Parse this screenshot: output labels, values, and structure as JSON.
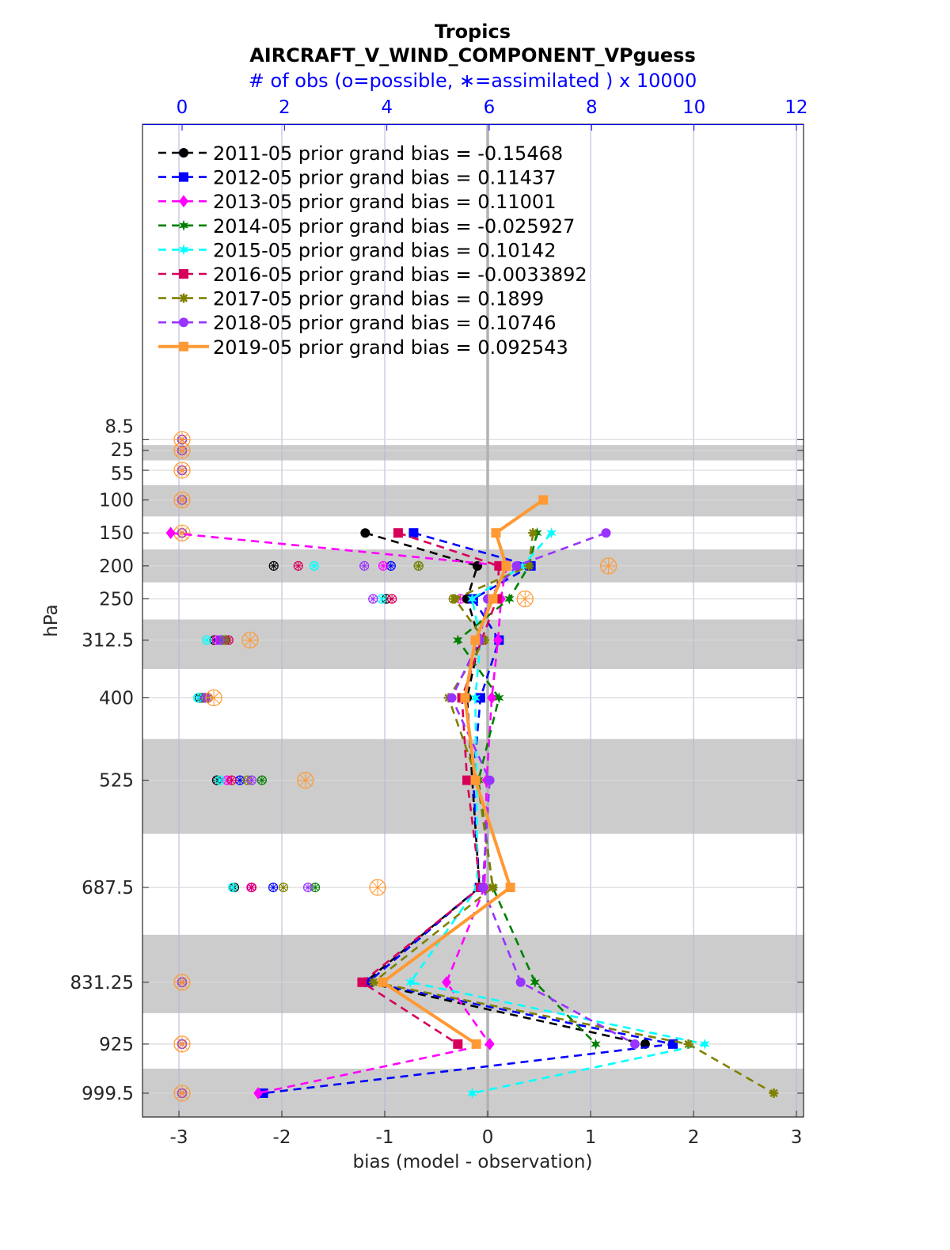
{
  "chart_data": {
    "type": "line",
    "title": "Tropics",
    "subtitle": "AIRCRAFT_V_WIND_COMPONENT_VPguess",
    "top_axis_label": "# of obs (o=possible, ∗=assimilated ) x 10000",
    "xlabel": "bias (model - observation)",
    "ylabel": "hPa",
    "xlim": [
      -3.354,
      3.069
    ],
    "top_xlim": [
      -0.773,
      12.14
    ],
    "ylim": [
      -469.6,
      1035.6
    ],
    "y_reversed": true,
    "x_ticks": [
      "-3",
      "-2",
      "-1",
      "0",
      "1",
      "2",
      "3"
    ],
    "top_ticks": [
      "0",
      "2",
      "4",
      "6",
      "8",
      "10",
      "12"
    ],
    "levels": [
      8.5,
      25,
      55,
      100,
      150,
      200,
      250,
      312.5,
      400,
      525,
      687.5,
      831.25,
      925,
      999.5
    ],
    "level_labels": [
      "8.5",
      "25",
      "55",
      "100",
      "150",
      "200",
      "250",
      "312.5",
      "400",
      "525",
      "687.5",
      "831.25",
      "925",
      "999.5"
    ],
    "grid": true,
    "legend_placement": "top-left",
    "zero_line_color": "#b3b3b3",
    "band_color": "#cccccc",
    "series": [
      {
        "name": "2011-05 prior grand bias = -0.15468",
        "color": "#000000",
        "marker": "circle",
        "style": "dashed",
        "bias": [
          null,
          null,
          null,
          null,
          -1.19,
          -0.1,
          -0.2,
          -0.08,
          -0.2,
          -0.15,
          -0.08,
          -1.19,
          1.53,
          null
        ],
        "obs": [
          0,
          0,
          0,
          0,
          0,
          1.79,
          3.99,
          0.63,
          0.34,
          0.68,
          1.02,
          0,
          0,
          0
        ]
      },
      {
        "name": "2012-05 prior grand bias = 0.11437",
        "color": "#0000ff",
        "marker": "square",
        "style": "dashed",
        "bias": [
          null,
          null,
          null,
          null,
          -0.72,
          0.42,
          -0.14,
          0.11,
          -0.07,
          -0.14,
          -0.08,
          -1.16,
          1.8,
          -2.18
        ],
        "obs": [
          0,
          0,
          0,
          0,
          0,
          4.08,
          5.67,
          0.76,
          0.43,
          1.13,
          1.78,
          0,
          0,
          0
        ]
      },
      {
        "name": "2013-05 prior grand bias = 0.11001",
        "color": "#ff00ff",
        "marker": "diamond",
        "style": "dashed",
        "bias": [
          null,
          null,
          null,
          null,
          -3.08,
          0.18,
          0.13,
          0.1,
          0.04,
          -0.01,
          -0.03,
          -0.4,
          0.02,
          -2.23
        ],
        "obs": [
          0,
          0,
          0,
          0,
          0,
          3.93,
          5.44,
          0.68,
          0.43,
          0.88,
          1.35,
          0,
          0,
          0
        ]
      },
      {
        "name": "2014-05 prior grand bias = -0.025927",
        "color": "#007f00",
        "marker": "star",
        "style": "dashed",
        "bias": [
          null,
          null,
          null,
          null,
          0.48,
          0.4,
          0.21,
          -0.29,
          0.11,
          -0.09,
          0.05,
          0.46,
          1.05,
          null
        ],
        "obs": [
          0,
          0,
          0,
          0,
          0,
          4.62,
          5.58,
          0.85,
          0.4,
          1.56,
          2.6,
          0,
          0,
          0
        ]
      },
      {
        "name": "2015-05 prior grand bias = 0.10142",
        "color": "#00ffff",
        "marker": "star",
        "style": "dashed",
        "bias": [
          null,
          null,
          null,
          null,
          0.62,
          0.34,
          -0.15,
          -0.07,
          -0.12,
          -0.11,
          -0.1,
          -0.75,
          2.11,
          -0.15
        ],
        "obs": [
          0,
          0,
          0,
          0,
          0,
          2.58,
          3.9,
          0.48,
          0.31,
          0.74,
          0.99,
          0,
          0,
          0
        ]
      },
      {
        "name": "2016-05 prior grand bias = -0.0033892",
        "color": "#d6005a",
        "marker": "square",
        "style": "dashed",
        "bias": [
          null,
          null,
          null,
          null,
          -0.87,
          0.11,
          0.09,
          -0.06,
          -0.25,
          -0.2,
          -0.07,
          -1.22,
          -0.29,
          null
        ],
        "obs": [
          0,
          0,
          0,
          0,
          0,
          2.27,
          4.1,
          0.91,
          0.51,
          0.97,
          1.36,
          0,
          0,
          0
        ]
      },
      {
        "name": "2017-05 prior grand bias = 0.1899",
        "color": "#808000",
        "marker": "asterisk",
        "style": "dashed",
        "bias": [
          null,
          null,
          null,
          null,
          0.44,
          0.4,
          -0.32,
          -0.03,
          -0.38,
          -0.1,
          0.05,
          -1.11,
          1.95,
          2.78
        ],
        "obs": [
          0,
          0,
          0,
          0,
          0,
          4.62,
          5.3,
          0.82,
          0.5,
          1.28,
          1.98,
          0,
          0,
          0
        ]
      },
      {
        "name": "2018-05 prior grand bias = 0.10746",
        "color": "#9933ff",
        "marker": "circle",
        "style": "dashed",
        "bias": [
          null,
          null,
          null,
          null,
          1.15,
          0.28,
          0.0,
          -0.08,
          -0.35,
          0.02,
          -0.05,
          0.32,
          1.43,
          null
        ],
        "obs": [
          0,
          0,
          0,
          0,
          0,
          3.56,
          3.73,
          0.74,
          0.46,
          1.36,
          2.46,
          0,
          0,
          0
        ]
      },
      {
        "name": "2019-05 prior grand bias = 0.092543",
        "color": "#ff9933",
        "marker": "square",
        "style": "solid",
        "bias": [
          null,
          null,
          null,
          0.54,
          0.08,
          0.18,
          0.05,
          -0.12,
          -0.22,
          -0.12,
          0.22,
          -1.02,
          -0.11,
          null
        ],
        "obs": [
          0,
          0,
          0,
          0,
          0,
          8.33,
          6.7,
          1.33,
          0.62,
          2.41,
          3.82,
          0,
          0,
          0
        ]
      }
    ]
  }
}
